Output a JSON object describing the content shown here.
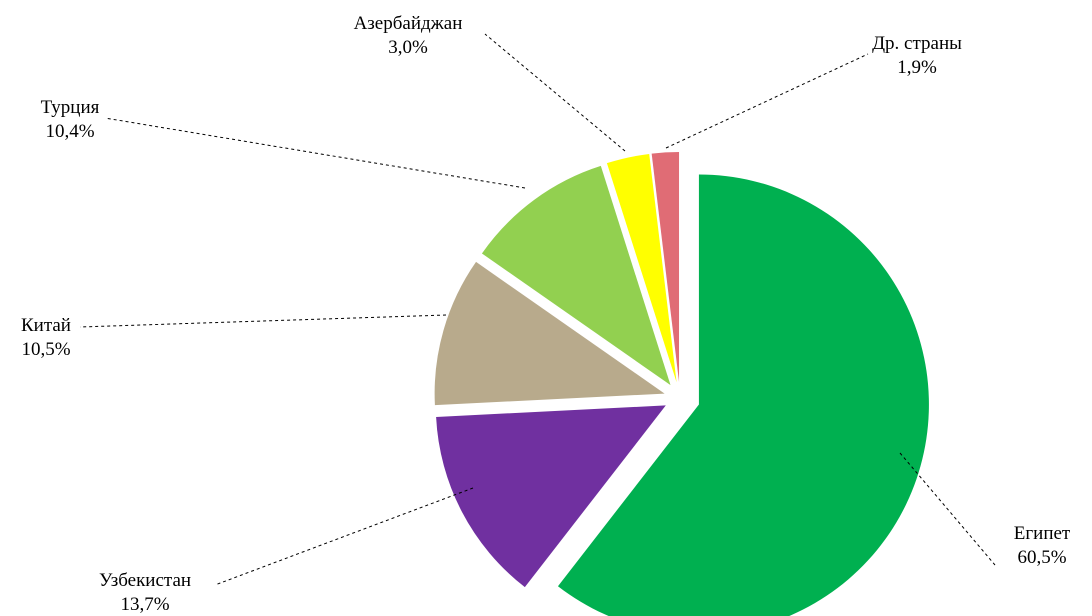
{
  "chart_data": {
    "type": "pie",
    "title": "",
    "unit": "%",
    "start_angle_deg": 0,
    "direction": "clockwise",
    "exploded": true,
    "slices": [
      {
        "name": "Египет",
        "value": 60.5,
        "value_label": "60,5%",
        "color": "#00b050"
      },
      {
        "name": "Узбекистан",
        "value": 13.7,
        "value_label": "13,7%",
        "color": "#7030a0"
      },
      {
        "name": "Китай",
        "value": 10.5,
        "value_label": "10,5%",
        "color": "#b8aa8c"
      },
      {
        "name": "Турция",
        "value": 10.4,
        "value_label": "10,4%",
        "color": "#92d050"
      },
      {
        "name": "Азербайджан",
        "value": 3.0,
        "value_label": "3,0%",
        "color": "#ffff00"
      },
      {
        "name": "Др. страны",
        "value": 1.9,
        "value_label": "1,9%",
        "color": "#e06c75"
      }
    ]
  }
}
